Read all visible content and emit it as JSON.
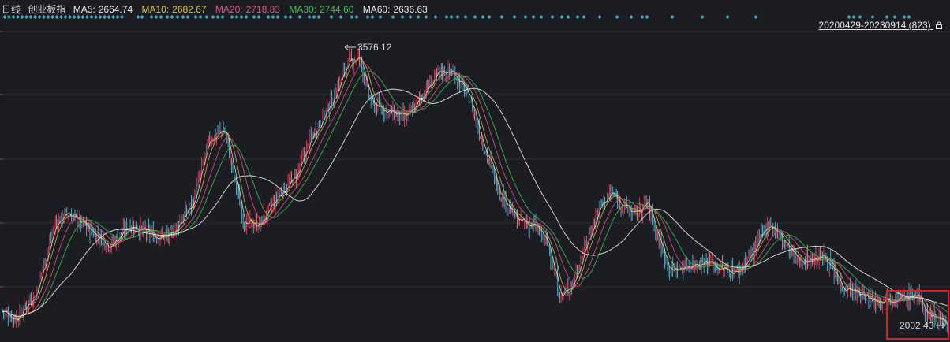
{
  "legend": {
    "title": "日线",
    "index_name": "创业板指",
    "items": [
      {
        "label": "MA5:",
        "value": "2664.74",
        "color": "#e6e6e6"
      },
      {
        "label": "MA10:",
        "value": "2682.67",
        "color": "#d8c24a"
      },
      {
        "label": "MA20:",
        "value": "2718.83",
        "color": "#e0508a"
      },
      {
        "label": "MA30:",
        "value": "2744.60",
        "color": "#3fbf55"
      },
      {
        "label": "MA60:",
        "value": "2636.63",
        "color": "#e6e6e6"
      }
    ]
  },
  "range_label": "20200429-20230914 (823)",
  "annotations": {
    "high": "3576.12",
    "low": "2002.43"
  },
  "colors": {
    "up": "#e8425a",
    "down": "#5ec8e0",
    "marker": "#4fb3c8",
    "ma5": "#e6e6e6",
    "ma10": "#d8c24a",
    "ma20": "#e0508a",
    "ma30": "#3fbf55",
    "ma60": "#e6e6e6",
    "highlight": "#e02020"
  },
  "chart_data": {
    "type": "candlestick",
    "title": "创业板指 日线",
    "date_range": "20200429-20230914",
    "bar_count": 823,
    "ylim": [
      1930,
      3640
    ],
    "grid": true,
    "series": [
      {
        "name": "MA5",
        "value": 2664.74
      },
      {
        "name": "MA10",
        "value": 2682.67
      },
      {
        "name": "MA20",
        "value": 2718.83
      },
      {
        "name": "MA30",
        "value": 2744.6
      },
      {
        "name": "MA60",
        "value": 2636.63
      }
    ],
    "price_path": [
      [
        0,
        2090
      ],
      [
        20,
        2040
      ],
      [
        45,
        2180
      ],
      [
        70,
        2560
      ],
      [
        85,
        2620
      ],
      [
        110,
        2540
      ],
      [
        140,
        2440
      ],
      [
        165,
        2560
      ],
      [
        190,
        2500
      ],
      [
        215,
        2490
      ],
      [
        245,
        2680
      ],
      [
        265,
        3020
      ],
      [
        285,
        3080
      ],
      [
        295,
        2850
      ],
      [
        310,
        2560
      ],
      [
        330,
        2560
      ],
      [
        355,
        2730
      ],
      [
        375,
        2820
      ],
      [
        395,
        3040
      ],
      [
        420,
        3230
      ],
      [
        440,
        3440
      ],
      [
        455,
        3480
      ],
      [
        470,
        3220
      ],
      [
        495,
        3170
      ],
      [
        515,
        3140
      ],
      [
        540,
        3300
      ],
      [
        560,
        3400
      ],
      [
        575,
        3390
      ],
      [
        595,
        3250
      ],
      [
        615,
        2960
      ],
      [
        635,
        2720
      ],
      [
        655,
        2580
      ],
      [
        680,
        2540
      ],
      [
        695,
        2440
      ],
      [
        710,
        2160
      ],
      [
        725,
        2230
      ],
      [
        745,
        2480
      ],
      [
        760,
        2660
      ],
      [
        775,
        2730
      ],
      [
        790,
        2660
      ],
      [
        805,
        2610
      ],
      [
        820,
        2680
      ],
      [
        835,
        2470
      ],
      [
        850,
        2300
      ],
      [
        870,
        2330
      ],
      [
        895,
        2360
      ],
      [
        915,
        2310
      ],
      [
        935,
        2300
      ],
      [
        955,
        2410
      ],
      [
        975,
        2570
      ],
      [
        990,
        2480
      ],
      [
        1010,
        2360
      ],
      [
        1030,
        2370
      ],
      [
        1045,
        2380
      ],
      [
        1065,
        2230
      ],
      [
        1090,
        2170
      ],
      [
        1110,
        2140
      ],
      [
        1130,
        2160
      ],
      [
        1150,
        2150
      ],
      [
        1160,
        2180
      ],
      [
        1175,
        2070
      ],
      [
        1195,
        2040
      ],
      [
        1200,
        2002
      ]
    ]
  }
}
